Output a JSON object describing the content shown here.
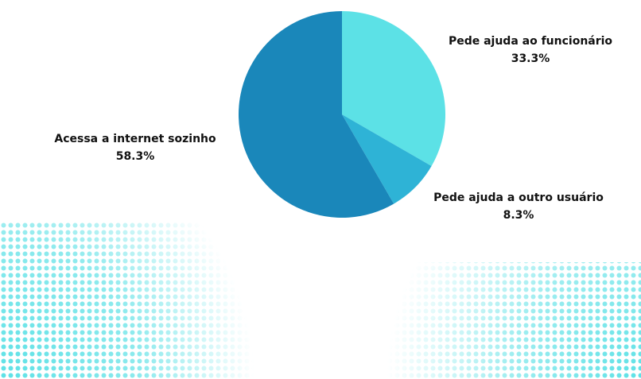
{
  "chart_data": {
    "type": "pie",
    "categories": [
      "Pede ajuda ao funcionário",
      "Pede ajuda a outro usuário",
      "Acessa a internet sozinho"
    ],
    "values": [
      33.3,
      8.3,
      58.3
    ],
    "value_labels": [
      "33.3%",
      "8.3%",
      "58.3%"
    ],
    "colors": [
      "#5ce1e6",
      "#2eb3d6",
      "#1a87ba"
    ]
  }
}
